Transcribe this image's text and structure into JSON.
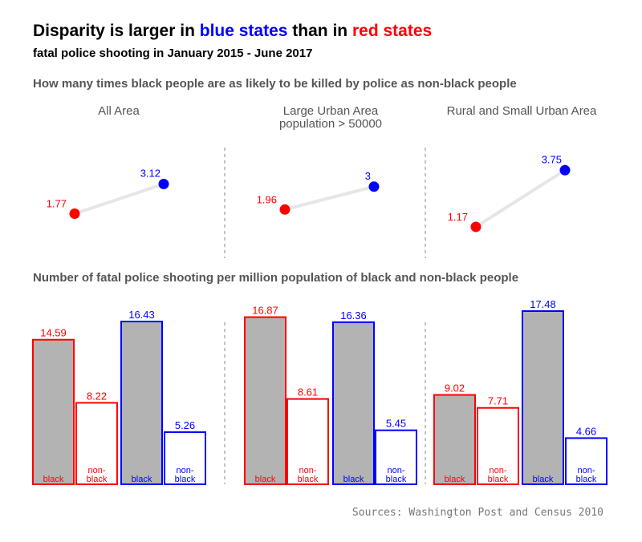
{
  "title": {
    "part1": "Disparity is larger in ",
    "blue_word": "blue states",
    "part2": " than in ",
    "red_word": "red states"
  },
  "subtitle": "fatal police shooting in January 2015 - June 2017",
  "ratio_section_title": "How many times black people are as likely to be killed by police as non-black people",
  "rate_section_title": "Number of fatal police shooting per million population of black and non-black people",
  "source": "Sources: Washington Post and Census 2010",
  "colors": {
    "red": "#ff0000",
    "blue": "#0000ff",
    "bar_fill": "#b3b3b3",
    "connector": "#e6e6e6",
    "divider": "#888888"
  },
  "chart_data": [
    {
      "type": "scatter",
      "section": "ratio",
      "panels": [
        {
          "title_line1": "All Area",
          "title_line2": "",
          "red_state": 1.77,
          "blue_state": 3.12,
          "red_label": "1.77",
          "blue_label": "3.12"
        },
        {
          "title_line1": "Large Urban Area",
          "title_line2": "population > 50000",
          "red_state": 1.96,
          "blue_state": 3,
          "red_label": "1.96",
          "blue_label": "3"
        },
        {
          "title_line1": "Rural and Small Urban Area",
          "title_line2": "",
          "red_state": 1.17,
          "blue_state": 3.75,
          "red_label": "1.17",
          "blue_label": "3.75"
        }
      ]
    },
    {
      "type": "bar",
      "section": "rate",
      "ylim": [
        0,
        17.48
      ],
      "panels": [
        {
          "bars": [
            {
              "state": "red",
              "group_line1": "black",
              "group_line2": "",
              "value": 14.59,
              "label": "14.59",
              "filled": true
            },
            {
              "state": "red",
              "group_line1": "non-",
              "group_line2": "black",
              "value": 8.22,
              "label": "8.22",
              "filled": false
            },
            {
              "state": "blue",
              "group_line1": "black",
              "group_line2": "",
              "value": 16.43,
              "label": "16.43",
              "filled": true
            },
            {
              "state": "blue",
              "group_line1": "non-",
              "group_line2": "black",
              "value": 5.26,
              "label": "5.26",
              "filled": false
            }
          ]
        },
        {
          "bars": [
            {
              "state": "red",
              "group_line1": "black",
              "group_line2": "",
              "value": 16.87,
              "label": "16.87",
              "filled": true
            },
            {
              "state": "red",
              "group_line1": "non-",
              "group_line2": "black",
              "value": 8.61,
              "label": "8.61",
              "filled": false
            },
            {
              "state": "blue",
              "group_line1": "black",
              "group_line2": "",
              "value": 16.36,
              "label": "16.36",
              "filled": true
            },
            {
              "state": "blue",
              "group_line1": "non-",
              "group_line2": "black",
              "value": 5.45,
              "label": "5.45",
              "filled": false
            }
          ]
        },
        {
          "bars": [
            {
              "state": "red",
              "group_line1": "black",
              "group_line2": "",
              "value": 9.02,
              "label": "9.02",
              "filled": true
            },
            {
              "state": "red",
              "group_line1": "non-",
              "group_line2": "black",
              "value": 7.71,
              "label": "7.71",
              "filled": false
            },
            {
              "state": "blue",
              "group_line1": "black",
              "group_line2": "",
              "value": 17.48,
              "label": "17.48",
              "filled": true
            },
            {
              "state": "blue",
              "group_line1": "non-",
              "group_line2": "black",
              "value": 4.66,
              "label": "4.66",
              "filled": false
            }
          ]
        }
      ]
    }
  ]
}
